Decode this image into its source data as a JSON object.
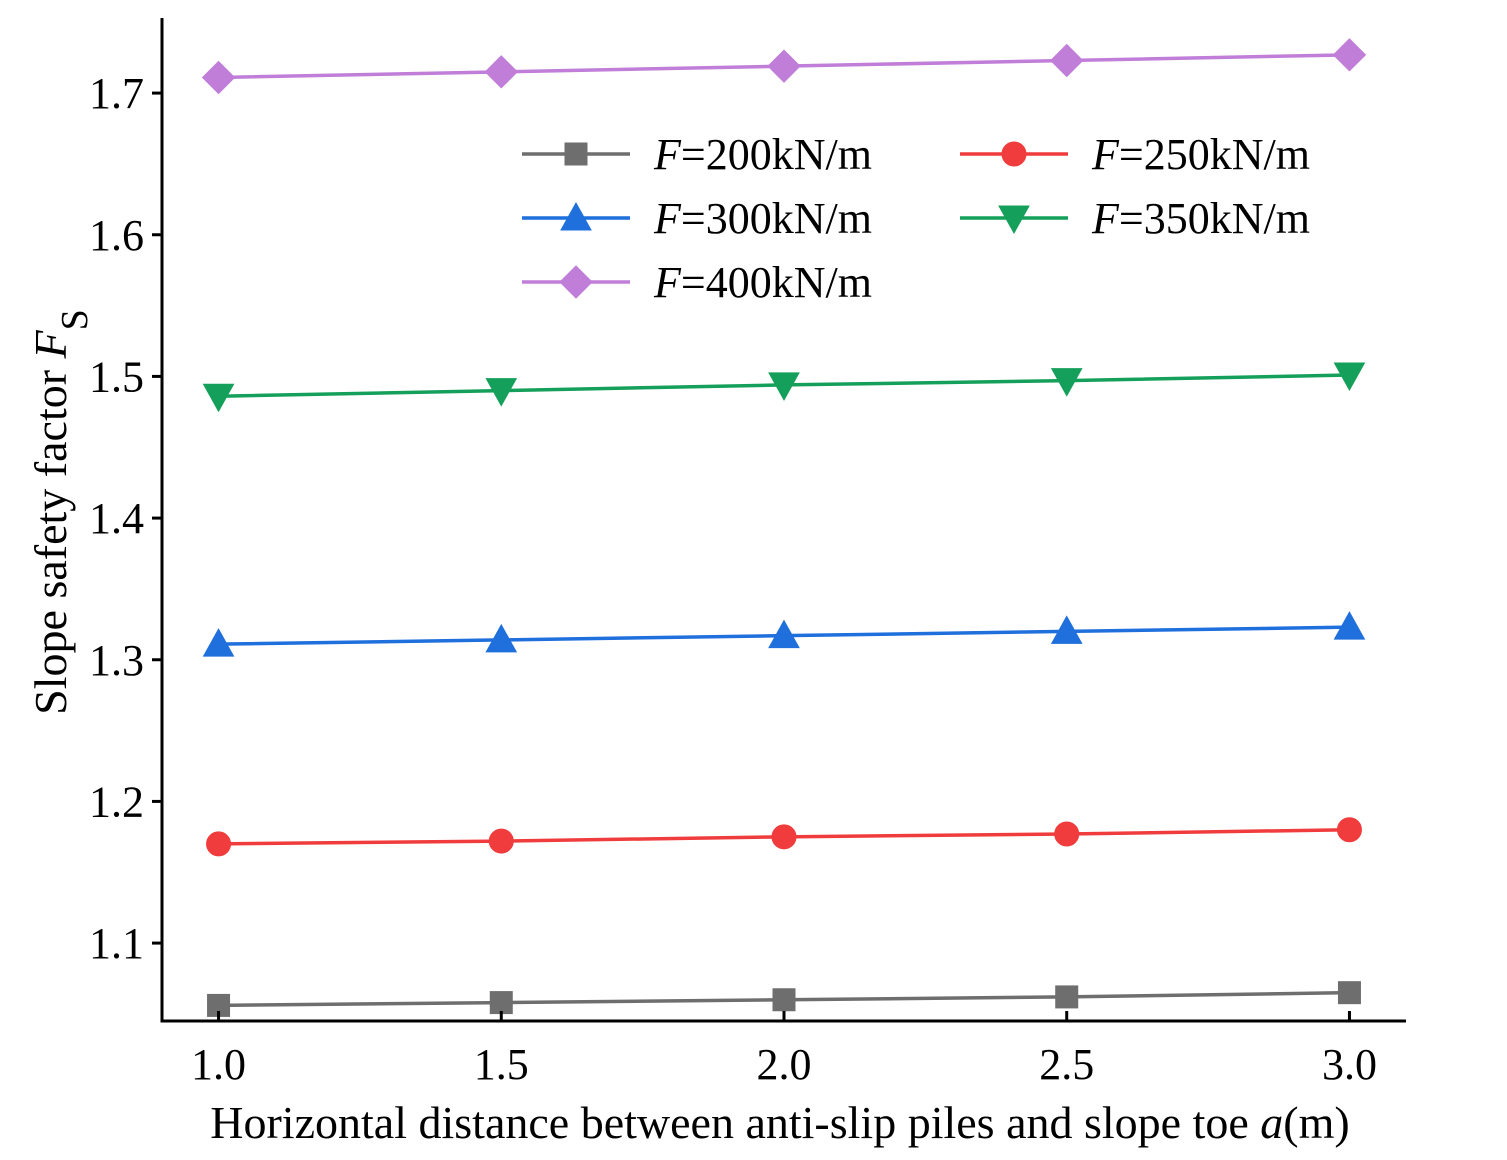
{
  "chart_data": {
    "type": "line",
    "title": "",
    "x": [
      1.0,
      1.5,
      2.0,
      2.5,
      3.0
    ],
    "x_tick_labels": [
      "1.0",
      "1.5",
      "2.0",
      "2.5",
      "3.0"
    ],
    "y_ticks": [
      1.1,
      1.2,
      1.3,
      1.4,
      1.5,
      1.6,
      1.7
    ],
    "y_tick_labels": [
      "1.1",
      "1.2",
      "1.3",
      "1.4",
      "1.5",
      "1.6",
      "1.7"
    ],
    "xlim": [
      0.9,
      3.1
    ],
    "ylim": [
      1.045,
      1.753
    ],
    "xlabel": {
      "text": "Horizontal distance between anti-slip piles and slope toe  ",
      "var": "a",
      "unit": "(m)"
    },
    "ylabel": {
      "text": "Slope safety factor  ",
      "var": "F",
      "sub": "S"
    },
    "legend_position": "upper-center",
    "series": [
      {
        "name": "F=200kN/m",
        "var": "F",
        "label": "=200kN/m",
        "marker": "square",
        "color": "#6e6e6e",
        "values": [
          1.056,
          1.058,
          1.06,
          1.062,
          1.065
        ]
      },
      {
        "name": "F=250kN/m",
        "var": "F",
        "label": "=250kN/m",
        "marker": "circle",
        "color": "#f03c3c",
        "values": [
          1.17,
          1.172,
          1.175,
          1.177,
          1.18
        ]
      },
      {
        "name": "F=300kN/m",
        "var": "F",
        "label": "=300kN/m",
        "marker": "triangle-up",
        "color": "#1f6fdc",
        "values": [
          1.311,
          1.314,
          1.317,
          1.32,
          1.323
        ]
      },
      {
        "name": "F=350kN/m",
        "var": "F",
        "label": "=350kN/m",
        "marker": "triangle-down",
        "color": "#14a05a",
        "values": [
          1.486,
          1.49,
          1.494,
          1.497,
          1.501
        ]
      },
      {
        "name": "F=400kN/m",
        "var": "F",
        "label": "=400kN/m",
        "marker": "diamond",
        "color": "#c07ed8",
        "values": [
          1.711,
          1.715,
          1.719,
          1.723,
          1.727
        ]
      }
    ]
  }
}
